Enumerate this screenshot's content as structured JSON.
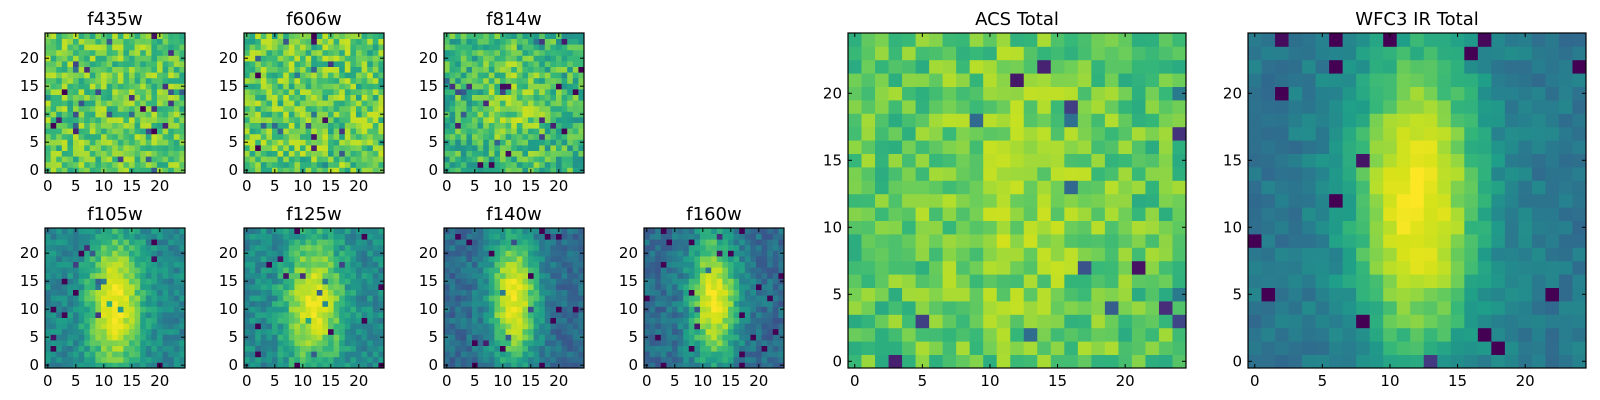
{
  "chart_data": [
    {
      "id": "f435w",
      "type": "heatmap",
      "title": "f435w",
      "colormap": "viridis",
      "grid_size": 25,
      "xlim": [
        0,
        24
      ],
      "ylim": [
        0,
        24
      ],
      "xticks": [
        "0",
        "5",
        "10",
        "15",
        "20"
      ],
      "yticks": [
        "0",
        "5",
        "10",
        "15",
        "20"
      ],
      "profile": {
        "peak_x": 12,
        "peak_y": 12,
        "core_amp": 0.0,
        "width_x": 4.0,
        "width_y": 7.0,
        "base": 0.68,
        "noise": 0.16,
        "seed": 3
      }
    },
    {
      "id": "f606w",
      "type": "heatmap",
      "title": "f606w",
      "colormap": "viridis",
      "grid_size": 25,
      "xlim": [
        0,
        24
      ],
      "ylim": [
        0,
        24
      ],
      "xticks": [
        "0",
        "5",
        "10",
        "15",
        "20"
      ],
      "yticks": [
        "0",
        "5",
        "10",
        "15",
        "20"
      ],
      "profile": {
        "peak_x": 12,
        "peak_y": 12,
        "core_amp": 0.0,
        "width_x": 4.0,
        "width_y": 7.0,
        "base": 0.68,
        "noise": 0.18,
        "seed": 11
      }
    },
    {
      "id": "f814w",
      "type": "heatmap",
      "title": "f814w",
      "colormap": "viridis",
      "grid_size": 25,
      "xlim": [
        0,
        24
      ],
      "ylim": [
        0,
        24
      ],
      "xticks": [
        "0",
        "5",
        "10",
        "15",
        "20"
      ],
      "yticks": [
        "0",
        "5",
        "10",
        "15",
        "20"
      ],
      "profile": {
        "peak_x": 12,
        "peak_y": 12,
        "core_amp": 0.15,
        "width_x": 3.5,
        "width_y": 6.0,
        "base": 0.6,
        "noise": 0.16,
        "seed": 23
      }
    },
    {
      "id": "f105w",
      "type": "heatmap",
      "title": "f105w",
      "colormap": "viridis",
      "grid_size": 25,
      "xlim": [
        0,
        24
      ],
      "ylim": [
        0,
        24
      ],
      "xticks": [
        "0",
        "5",
        "10",
        "15",
        "20"
      ],
      "yticks": [
        "0",
        "5",
        "10",
        "15",
        "20"
      ],
      "profile": {
        "peak_x": 12,
        "peak_y": 11,
        "core_amp": 0.55,
        "width_x": 3.2,
        "width_y": 8.0,
        "base": 0.42,
        "noise": 0.09,
        "seed": 37
      }
    },
    {
      "id": "f125w",
      "type": "heatmap",
      "title": "f125w",
      "colormap": "viridis",
      "grid_size": 25,
      "xlim": [
        0,
        24
      ],
      "ylim": [
        0,
        24
      ],
      "xticks": [
        "0",
        "5",
        "10",
        "15",
        "20"
      ],
      "yticks": [
        "0",
        "5",
        "10",
        "15",
        "20"
      ],
      "profile": {
        "peak_x": 12,
        "peak_y": 11,
        "core_amp": 0.5,
        "width_x": 3.5,
        "width_y": 8.0,
        "base": 0.42,
        "noise": 0.1,
        "seed": 41
      }
    },
    {
      "id": "f140w",
      "type": "heatmap",
      "title": "f140w",
      "colormap": "viridis",
      "grid_size": 25,
      "xlim": [
        0,
        24
      ],
      "ylim": [
        0,
        24
      ],
      "xticks": [
        "0",
        "5",
        "10",
        "15",
        "20"
      ],
      "yticks": [
        "0",
        "5",
        "10",
        "15",
        "20"
      ],
      "profile": {
        "peak_x": 12,
        "peak_y": 12,
        "core_amp": 0.62,
        "width_x": 3.0,
        "width_y": 8.0,
        "base": 0.32,
        "noise": 0.09,
        "seed": 53
      }
    },
    {
      "id": "f160w",
      "type": "heatmap",
      "title": "f160w",
      "colormap": "viridis",
      "grid_size": 25,
      "xlim": [
        0,
        24
      ],
      "ylim": [
        0,
        24
      ],
      "xticks": [
        "0",
        "5",
        "10",
        "15",
        "20"
      ],
      "yticks": [
        "0",
        "5",
        "10",
        "15",
        "20"
      ],
      "profile": {
        "peak_x": 12,
        "peak_y": 12,
        "core_amp": 0.62,
        "width_x": 3.0,
        "width_y": 8.0,
        "base": 0.32,
        "noise": 0.09,
        "seed": 67
      }
    },
    {
      "id": "acs-total",
      "type": "heatmap",
      "title": "ACS Total",
      "colormap": "viridis",
      "grid_size": 25,
      "xlim": [
        0,
        24
      ],
      "ylim": [
        0,
        24
      ],
      "xticks": [
        "0",
        "5",
        "10",
        "15",
        "20"
      ],
      "yticks": [
        "0",
        "5",
        "10",
        "15",
        "20"
      ],
      "profile": {
        "peak_x": 12,
        "peak_y": 12,
        "core_amp": 0.12,
        "width_x": 4.0,
        "width_y": 7.0,
        "base": 0.66,
        "noise": 0.12,
        "seed": 79
      }
    },
    {
      "id": "wfc3-ir-total",
      "type": "heatmap",
      "title": "WFC3 IR Total",
      "colormap": "viridis",
      "grid_size": 25,
      "xlim": [
        0,
        24
      ],
      "ylim": [
        0,
        24
      ],
      "xticks": [
        "0",
        "5",
        "10",
        "15",
        "20"
      ],
      "yticks": [
        "0",
        "5",
        "10",
        "15",
        "20"
      ],
      "profile": {
        "peak_x": 12,
        "peak_y": 12,
        "core_amp": 0.62,
        "width_x": 3.2,
        "width_y": 8.0,
        "base": 0.36,
        "noise": 0.06,
        "seed": 97
      }
    }
  ]
}
